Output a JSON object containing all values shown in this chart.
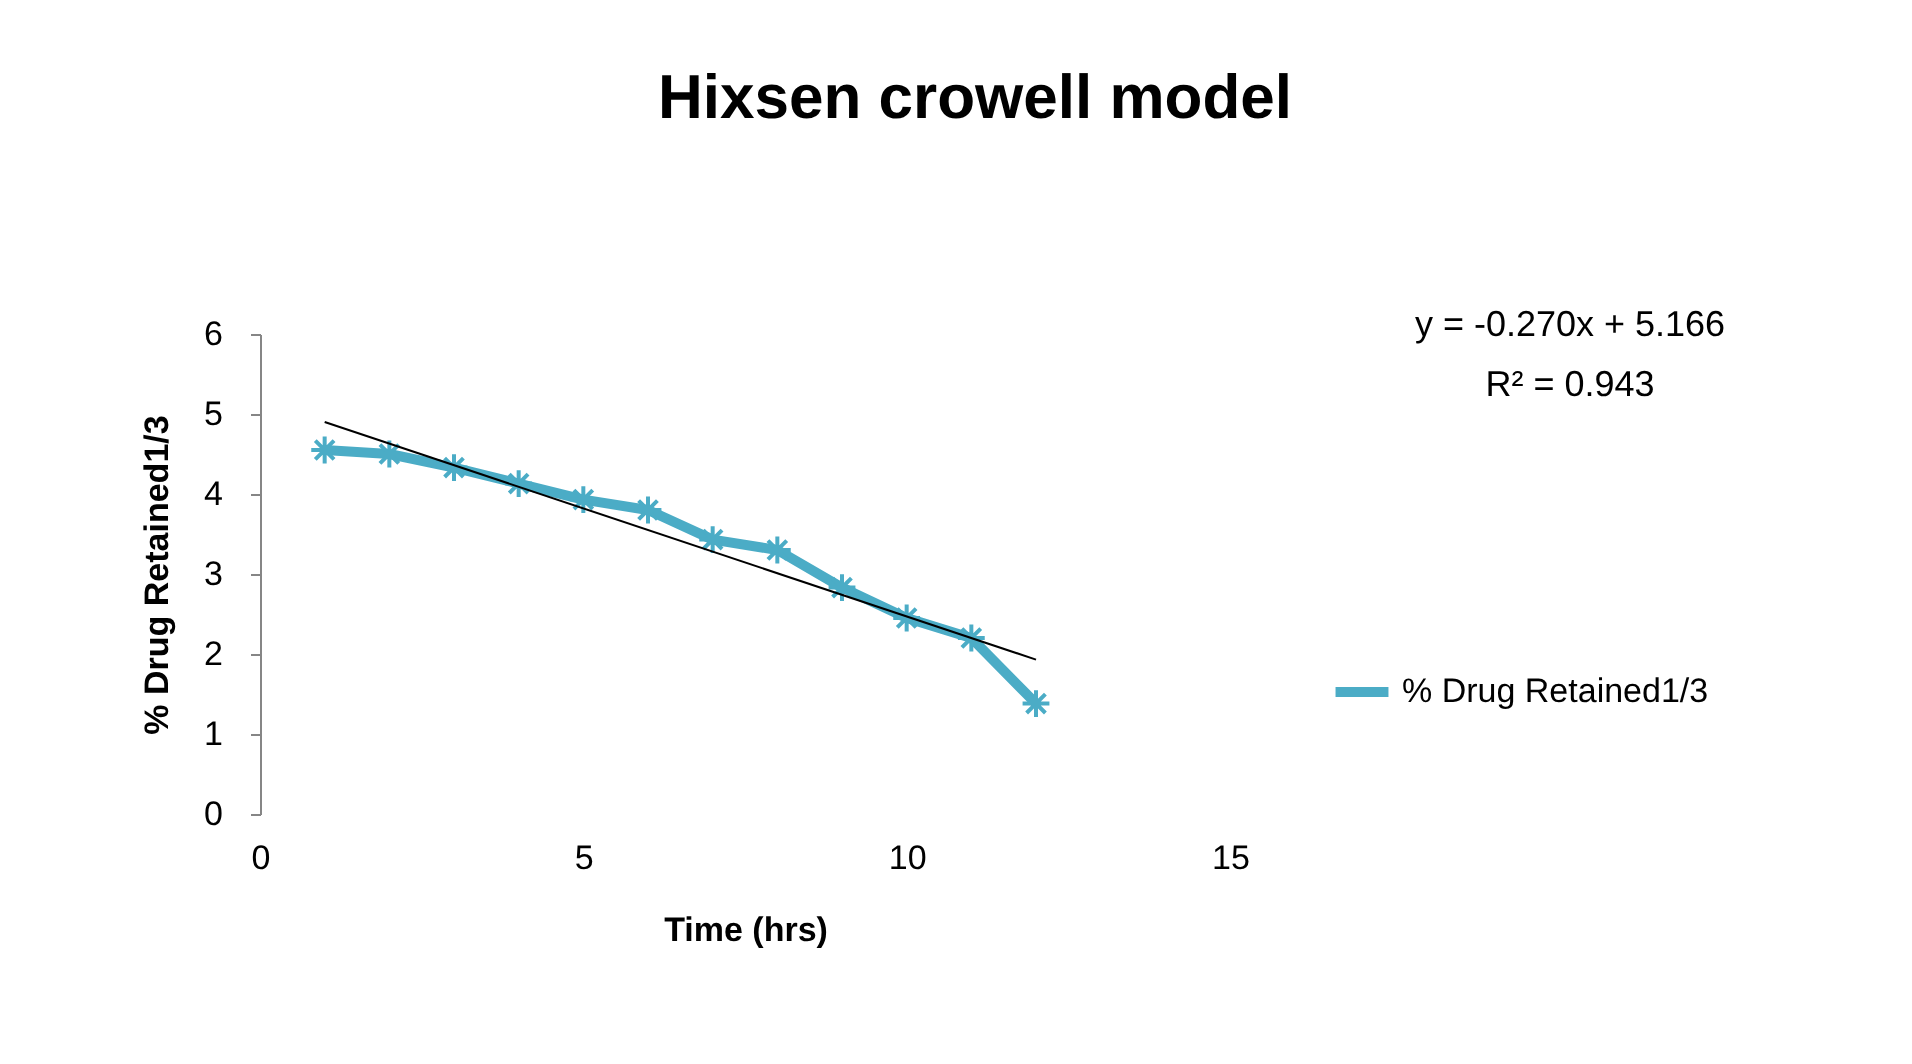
{
  "chart_data": {
    "type": "line",
    "title": "Hixsen crowell model",
    "xlabel": "Time (hrs)",
    "ylabel": "% Drug Retained1/3",
    "x": [
      1,
      2,
      3,
      4,
      5,
      6,
      7,
      8,
      9,
      10,
      11,
      12
    ],
    "series": [
      {
        "name": "% Drug Retained1/3",
        "color": "#4bacc6",
        "values": [
          4.55,
          4.5,
          4.33,
          4.13,
          3.93,
          3.8,
          3.43,
          3.3,
          2.83,
          2.45,
          2.2,
          1.38
        ],
        "marker": "cross"
      },
      {
        "type": "line",
        "color": "#000000",
        "x": [
          1,
          12
        ],
        "values": [
          4.9,
          1.93
        ],
        "marker": "none"
      }
    ],
    "annotations": [
      "y = -0.270x + 5.166",
      "R² = 0.943"
    ],
    "xlim": [
      0,
      15
    ],
    "xticks": [
      0,
      5,
      10,
      15
    ],
    "ylim": [
      0,
      6
    ],
    "yticks": [
      0,
      1,
      2,
      3,
      4,
      5,
      6
    ],
    "legend": "right",
    "grid": false
  }
}
